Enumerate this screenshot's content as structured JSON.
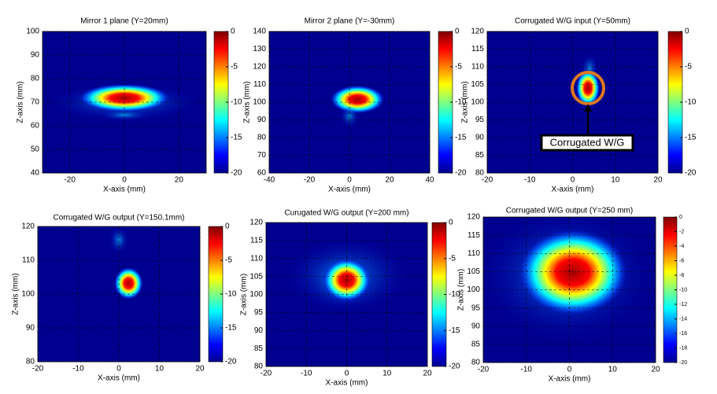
{
  "chart_data": [
    {
      "type": "heatmap",
      "title": "Mirror 1 plane (Y=20mm)",
      "x_label": "X-axis (mm)",
      "y_label": "Z-axis (mm)",
      "xlim": [
        -30,
        30
      ],
      "xticks": [
        -20,
        0,
        20
      ],
      "ylim": [
        40,
        100
      ],
      "yticks": [
        40,
        50,
        60,
        70,
        80,
        90,
        100
      ],
      "clim": [
        -20,
        0
      ],
      "cticks": [
        0,
        -5,
        -10,
        -15,
        -20
      ],
      "grid": true,
      "colormap": "jet"
    },
    {
      "type": "heatmap",
      "title": "Mirror 2 plane (Y=-30mm)",
      "x_label": "X-axis (mm)",
      "y_label": "Z-axis (mm)",
      "xlim": [
        -40,
        40
      ],
      "xticks": [
        -40,
        -20,
        0,
        20,
        40
      ],
      "ylim": [
        60,
        140
      ],
      "yticks": [
        60,
        70,
        80,
        90,
        100,
        110,
        120,
        130,
        140
      ],
      "clim": [
        -20,
        0
      ],
      "cticks": [
        0,
        -5,
        -10,
        -15,
        -20
      ],
      "grid": true,
      "colormap": "jet"
    },
    {
      "type": "heatmap",
      "title": "Corrugated W/G input (Y=50mm)",
      "x_label": "X-axis (mm)",
      "y_label": "Z-axis (mm)",
      "xlim": [
        -20,
        20
      ],
      "xticks": [
        -20,
        -10,
        0,
        10,
        20
      ],
      "ylim": [
        80,
        120
      ],
      "yticks": [
        80,
        85,
        90,
        95,
        100,
        105,
        110,
        115,
        120
      ],
      "clim": [
        -20,
        0
      ],
      "cticks": [
        0,
        -5,
        -10,
        -15,
        -20
      ],
      "grid": true,
      "colormap": "jet",
      "annotation": "Corrugated W/G"
    },
    {
      "type": "heatmap",
      "title": "Corrugated W/G output (Y=150.1mm)",
      "x_label": "X-axis (mm)",
      "y_label": "Z-axis (mm)",
      "xlim": [
        -20,
        20
      ],
      "xticks": [
        -20,
        -10,
        0,
        10,
        20
      ],
      "ylim": [
        80,
        120
      ],
      "yticks": [
        80,
        90,
        100,
        110,
        120
      ],
      "clim": [
        -20,
        0
      ],
      "cticks": [
        0,
        -5,
        -10,
        -15,
        -20
      ],
      "grid": true,
      "colormap": "jet"
    },
    {
      "type": "heatmap",
      "title": "Curugated W/G output (Y=200 mm)",
      "x_label": "X-axis (mm)",
      "y_label": "Z-axis (mm)",
      "xlim": [
        -20,
        20
      ],
      "xticks": [
        -20,
        -10,
        0,
        10,
        20
      ],
      "ylim": [
        80,
        120
      ],
      "yticks": [
        80,
        85,
        90,
        95,
        100,
        105,
        110,
        115,
        120
      ],
      "clim": [
        -20,
        0
      ],
      "cticks": [
        0,
        -5,
        -10,
        -15,
        -20
      ],
      "grid": true,
      "colormap": "jet"
    },
    {
      "type": "heatmap",
      "title": "Corrugated W/G output (Y=250 mm)",
      "x_label": "X-axis (mm)",
      "y_label": "Z-axis (mm)",
      "xlim": [
        -20,
        20
      ],
      "xticks": [
        -20,
        -10,
        0,
        10,
        20
      ],
      "ylim": [
        80,
        120
      ],
      "yticks": [
        80,
        85,
        90,
        95,
        100,
        105,
        110,
        115,
        120
      ],
      "clim": [
        -20,
        0
      ],
      "cticks": [
        0,
        -2,
        -4,
        -6,
        -8,
        -10,
        -12,
        -14,
        -16,
        -18,
        -20
      ],
      "grid": true,
      "colormap": "jet"
    }
  ]
}
